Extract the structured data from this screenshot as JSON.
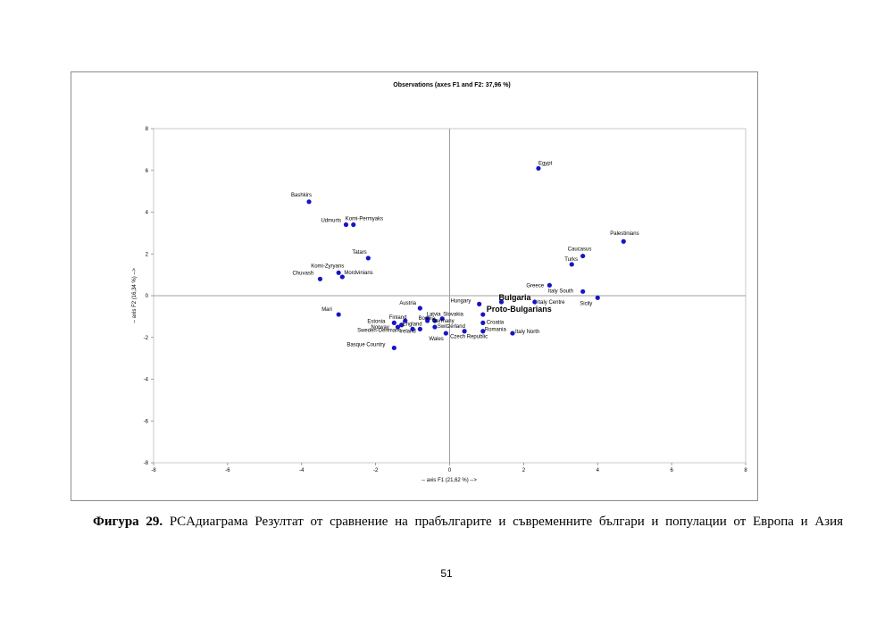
{
  "chart_data": {
    "type": "scatter",
    "title": "Observations (axes F1 and F2: 37,96 %)",
    "xlabel": "-- axis F1 (21,62 %) -->",
    "ylabel": "-- axis F2 (16,34 %) -->",
    "xlim": [
      -8,
      8
    ],
    "ylim": [
      -8,
      8
    ],
    "xticks": [
      -8,
      -6,
      -4,
      -2,
      0,
      2,
      4,
      6,
      8
    ],
    "yticks": [
      -8,
      -6,
      -4,
      -2,
      0,
      2,
      4,
      6,
      8
    ],
    "grid": false,
    "marker_color": "#1515c8",
    "points": [
      {
        "label": "Egypt",
        "x": 2.4,
        "y": 6.1
      },
      {
        "label": "Bashkirs",
        "x": -3.8,
        "y": 4.5
      },
      {
        "label": "Udmurts",
        "x": -2.8,
        "y": 3.4
      },
      {
        "label": "Komi-Permyaks",
        "x": -2.6,
        "y": 3.4
      },
      {
        "label": "Tatars",
        "x": -2.2,
        "y": 1.8
      },
      {
        "label": "Komi-Zyryans",
        "x": -3.0,
        "y": 1.1
      },
      {
        "label": "Mordvinians",
        "x": -2.9,
        "y": 0.9
      },
      {
        "label": "Chuvash",
        "x": -3.5,
        "y": 0.8
      },
      {
        "label": "Palestinians",
        "x": 4.7,
        "y": 2.6
      },
      {
        "label": "Caucasus",
        "x": 3.6,
        "y": 1.9
      },
      {
        "label": "Turks",
        "x": 3.3,
        "y": 1.5
      },
      {
        "label": "Greece",
        "x": 2.7,
        "y": 0.5
      },
      {
        "label": "Italy South",
        "x": 3.6,
        "y": 0.2
      },
      {
        "label": "Sicily",
        "x": 4.0,
        "y": -0.1
      },
      {
        "label": "Italy Centre",
        "x": 2.3,
        "y": -0.3
      },
      {
        "label": "Bulgaria",
        "x": 1.4,
        "y": -0.3
      },
      {
        "label": "Hungary",
        "x": 0.8,
        "y": -0.4
      },
      {
        "label": "Proto-Bulgarians",
        "x": 0.9,
        "y": -0.9
      },
      {
        "label": "Croatia",
        "x": 0.9,
        "y": -1.3
      },
      {
        "label": "Romania",
        "x": 0.9,
        "y": -1.7
      },
      {
        "label": "Italy North",
        "x": 1.7,
        "y": -1.8
      },
      {
        "label": "Czech Republic",
        "x": 0.4,
        "y": -1.7
      },
      {
        "label": "Austria",
        "x": -0.8,
        "y": -0.6
      },
      {
        "label": "Latvia",
        "x": -0.6,
        "y": -1.1
      },
      {
        "label": "Slovakia",
        "x": -0.2,
        "y": -1.1
      },
      {
        "label": "Germany",
        "x": -0.4,
        "y": -1.2
      },
      {
        "label": "Bosnia",
        "x": -0.6,
        "y": -1.2
      },
      {
        "label": "Switzerland",
        "x": -0.4,
        "y": -1.5
      },
      {
        "label": "Wales",
        "x": -0.1,
        "y": -1.8
      },
      {
        "label": "Ireland",
        "x": -0.8,
        "y": -1.6
      },
      {
        "label": "Finland",
        "x": -1.2,
        "y": -1.2
      },
      {
        "label": "Estonia",
        "x": -1.5,
        "y": -1.3
      },
      {
        "label": "England",
        "x": -1.3,
        "y": -1.4
      },
      {
        "label": "Norway",
        "x": -1.4,
        "y": -1.5
      },
      {
        "label": "Sweden-Denmark",
        "x": -1.0,
        "y": -1.6
      },
      {
        "label": "Mari",
        "x": -3.0,
        "y": -0.9
      },
      {
        "label": "Basque Country",
        "x": -1.5,
        "y": -2.5
      }
    ]
  },
  "caption": {
    "number": "Фигура 29.",
    "text": "PCAдиаграма Резултат от сравнение на прабългарите и съвременните българи и популации от Европа и Азия"
  },
  "page_number": "51"
}
